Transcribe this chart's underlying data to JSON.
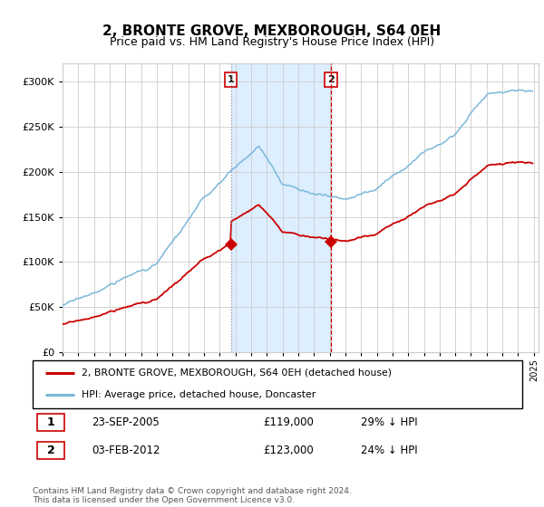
{
  "title": "2, BRONTE GROVE, MEXBOROUGH, S64 0EH",
  "subtitle": "Price paid vs. HM Land Registry's House Price Index (HPI)",
  "hpi_color": "#7ab8d9",
  "price_color": "#cc0000",
  "purchase1_date": "23-SEP-2005",
  "purchase1_price": 119000,
  "purchase1_label": "29% ↓ HPI",
  "purchase2_date": "03-FEB-2012",
  "purchase2_price": 123000,
  "purchase2_label": "24% ↓ HPI",
  "legend_line1": "2, BRONTE GROVE, MEXBOROUGH, S64 0EH (detached house)",
  "legend_line2": "HPI: Average price, detached house, Doncaster",
  "footer": "Contains HM Land Registry data © Crown copyright and database right 2024.\nThis data is licensed under the Open Government Licence v3.0.",
  "ylim": [
    0,
    320000
  ],
  "highlight_color": "#ddeeff",
  "purchase1_year": 2005.7083,
  "purchase2_year": 2012.0833
}
